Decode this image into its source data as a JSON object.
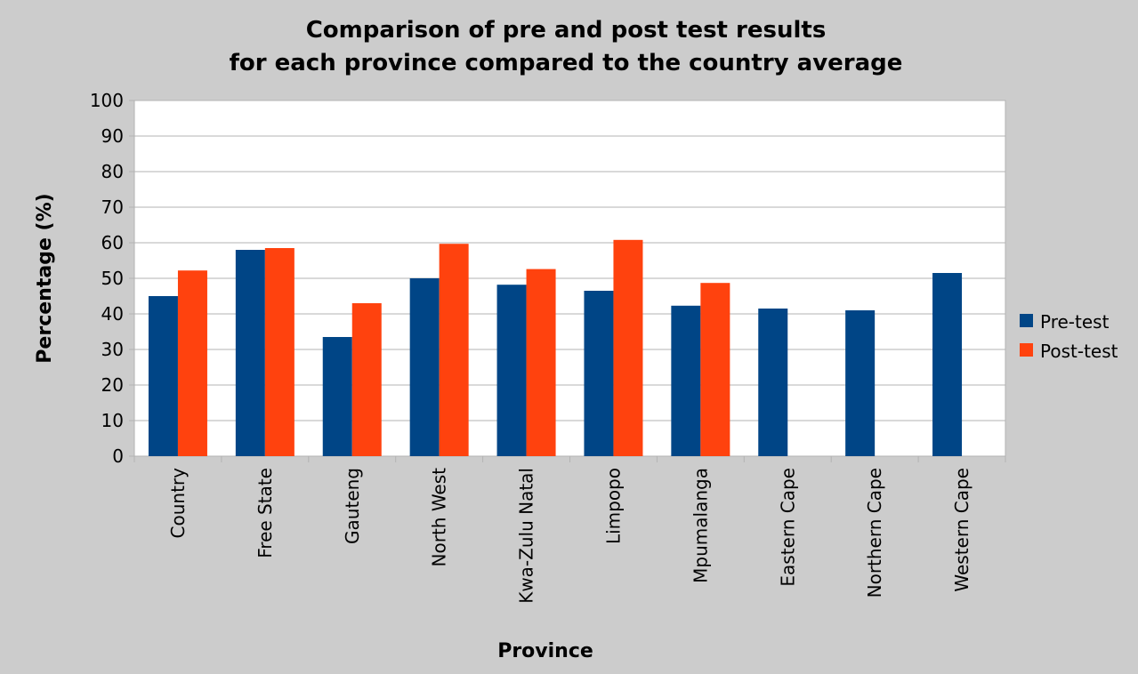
{
  "chart_data": {
    "type": "bar",
    "title": [
      "Comparison of pre and post test results",
      "for each province compared to the country average"
    ],
    "xlabel": "Province",
    "ylabel": "Percentage (%)",
    "ylim": [
      0,
      100
    ],
    "yticks": [
      "0",
      "10",
      "20",
      "30",
      "40",
      "50",
      "60",
      "70",
      "80",
      "90",
      "100"
    ],
    "grid": true,
    "legend_position": "right",
    "categories": [
      "Country",
      "Free State",
      "Gauteng",
      "North West",
      "Kwa-Zulu Natal",
      "Limpopo",
      "Mpumalanga",
      "Eastern Cape",
      "Northern Cape",
      "Western Cape"
    ],
    "series": [
      {
        "name": "Pre-test",
        "color": "#004586",
        "values": [
          45,
          58,
          33.5,
          50,
          48.2,
          46.5,
          42.3,
          41.5,
          41,
          51.5
        ]
      },
      {
        "name": "Post-test",
        "color": "#ff420e",
        "values": [
          52.2,
          58.5,
          43,
          59.7,
          52.6,
          60.8,
          48.7,
          null,
          null,
          null
        ]
      }
    ]
  }
}
